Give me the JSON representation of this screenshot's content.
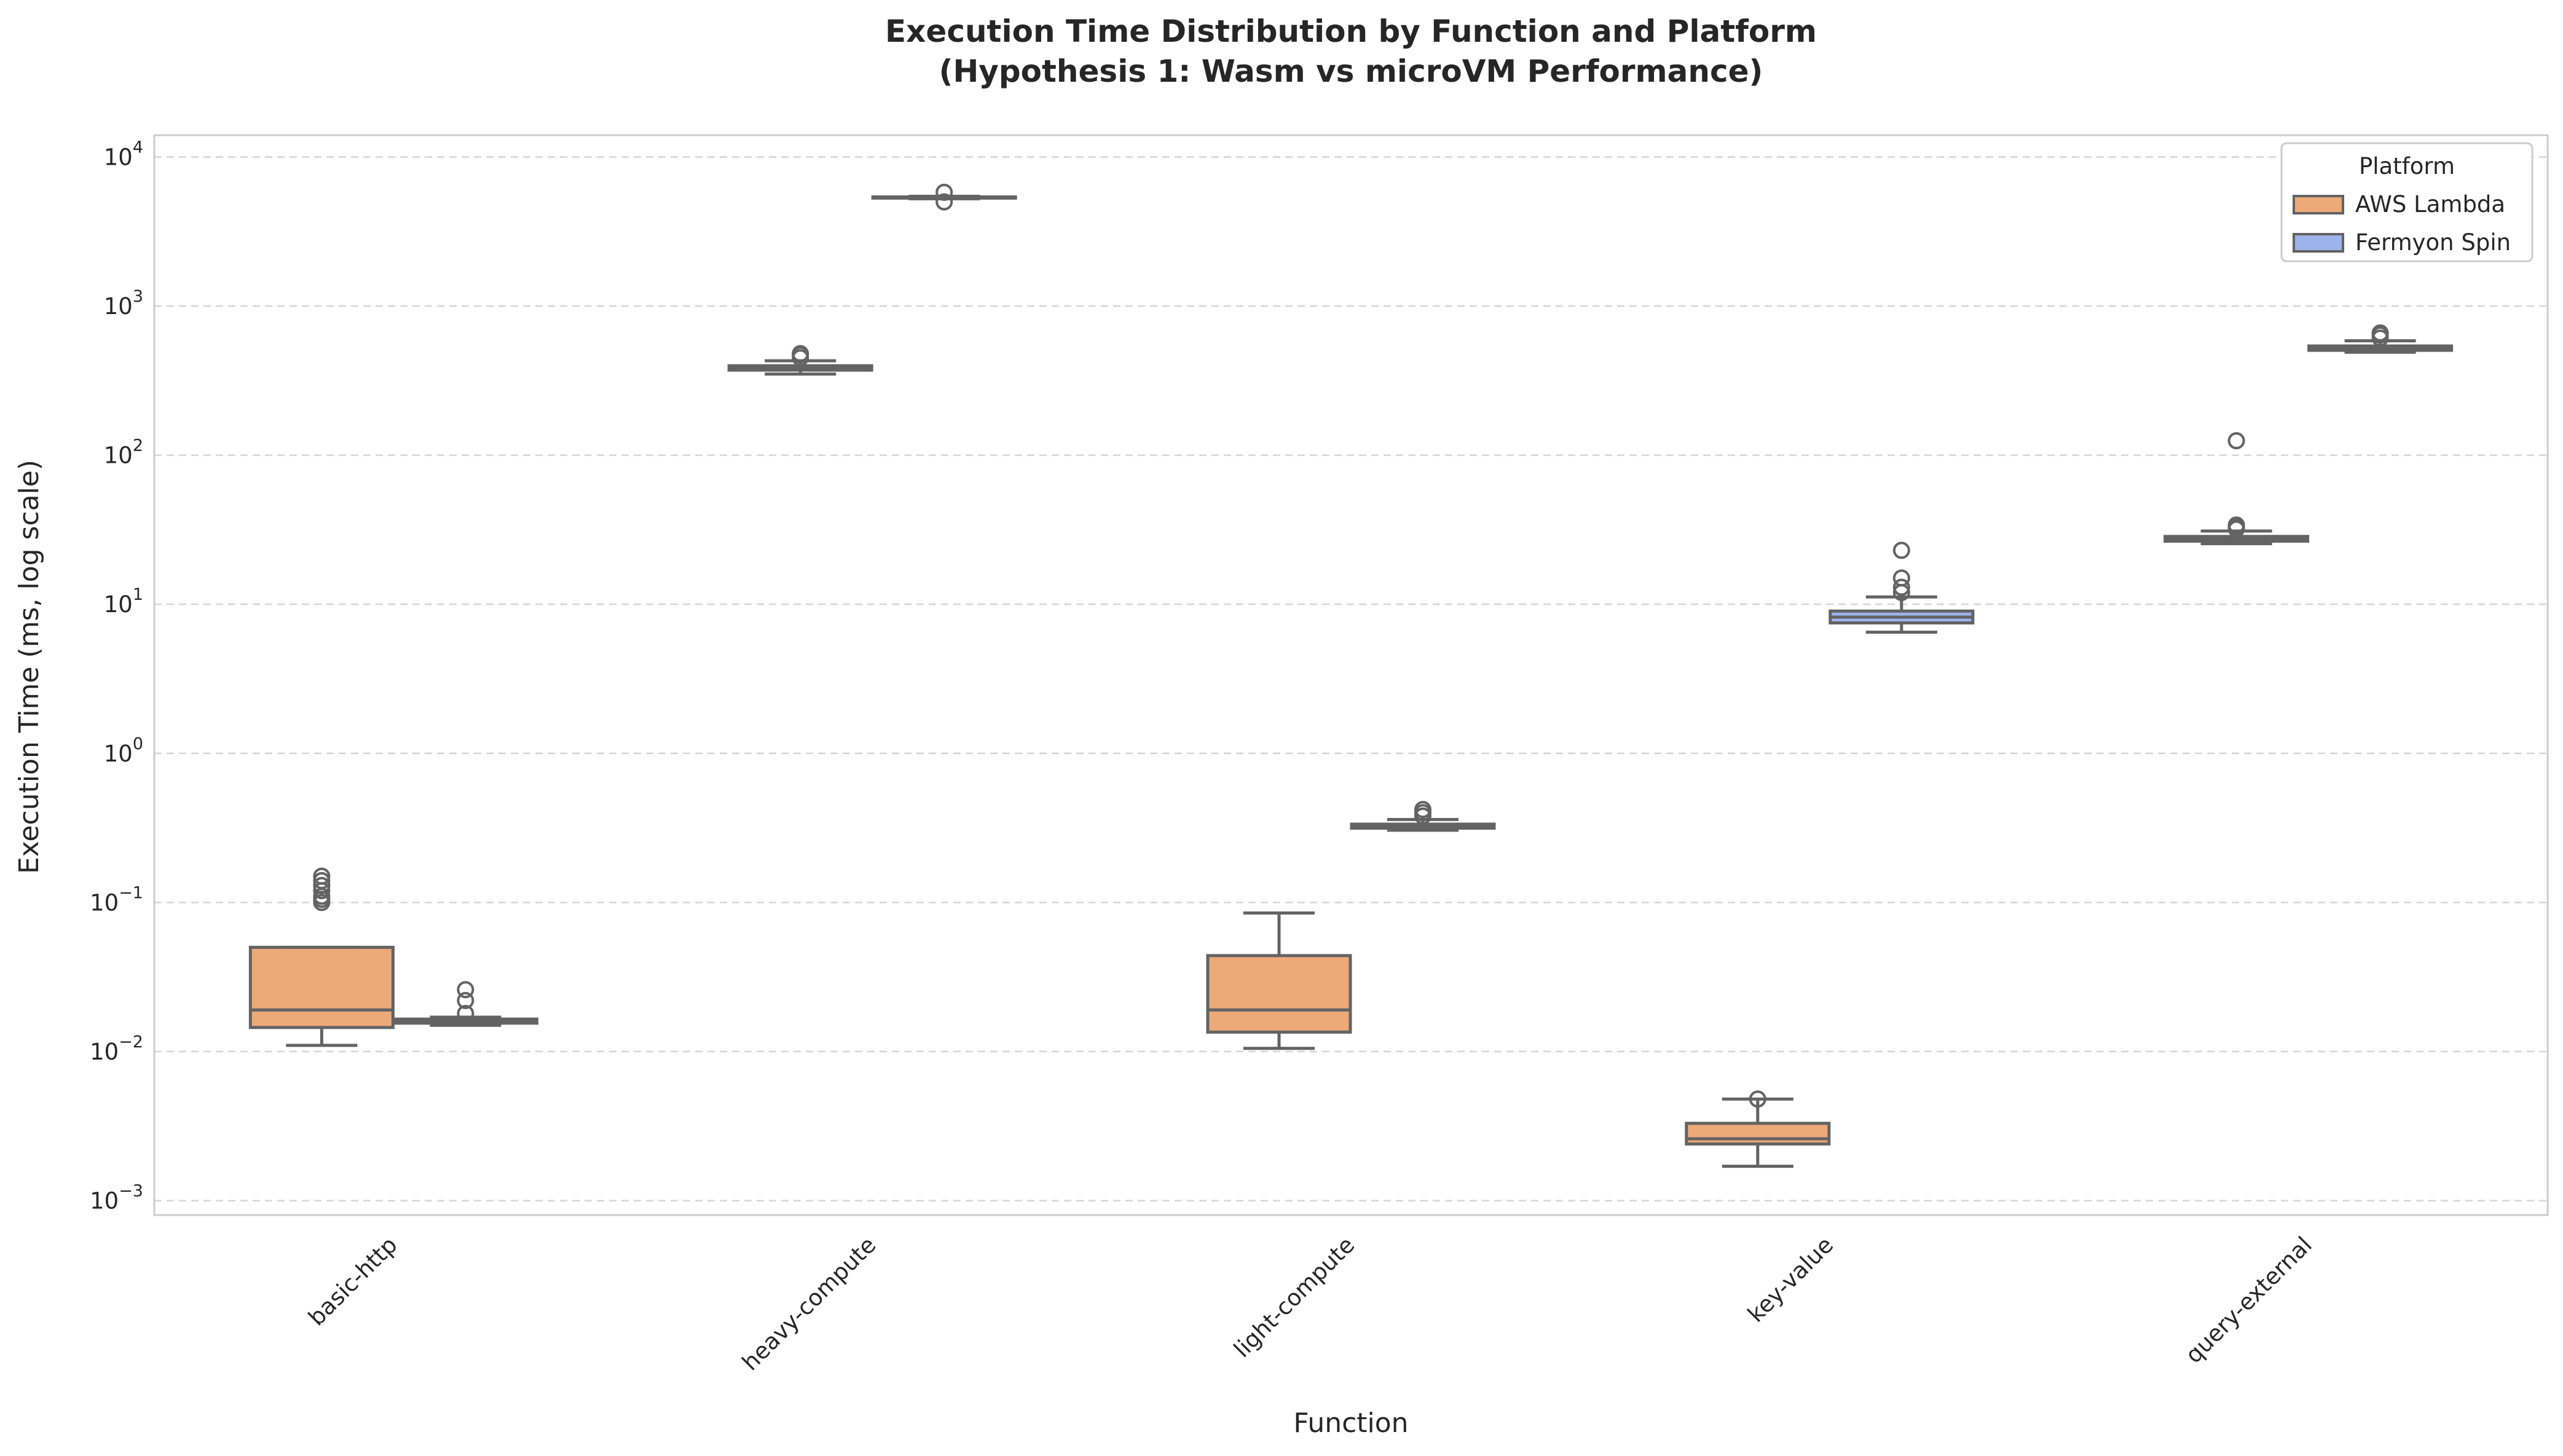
{
  "chart_data": {
    "type": "box",
    "title_line1": "Execution Time Distribution by Function and Platform",
    "title_line2": "(Hypothesis 1: Wasm vs microVM Performance)",
    "xlabel": "Function",
    "ylabel": "Execution Time (ms, log scale)",
    "yscale": "log",
    "ylim": [
      0.0008,
      14000
    ],
    "grid": true,
    "categories": [
      "basic-http",
      "heavy-compute",
      "light-compute",
      "key-value",
      "query-external"
    ],
    "yticks": [
      {
        "value": 0.001,
        "base": "10",
        "exp": "−3"
      },
      {
        "value": 0.01,
        "base": "10",
        "exp": "−2"
      },
      {
        "value": 0.1,
        "base": "10",
        "exp": "−1"
      },
      {
        "value": 1,
        "base": "10",
        "exp": "0"
      },
      {
        "value": 10,
        "base": "10",
        "exp": "1"
      },
      {
        "value": 100,
        "base": "10",
        "exp": "2"
      },
      {
        "value": 1000,
        "base": "10",
        "exp": "3"
      },
      {
        "value": 10000,
        "base": "10",
        "exp": "4"
      }
    ],
    "legend": {
      "title": "Platform",
      "placement": "top-right",
      "entries": [
        {
          "name": "AWS Lambda",
          "color": "#EDA978"
        },
        {
          "name": "Fermyon Spin",
          "color": "#9DB3EC"
        }
      ]
    },
    "series": [
      {
        "name": "AWS Lambda",
        "color": "#EDA978",
        "boxes": [
          {
            "category": "basic-http",
            "whislo": 0.011,
            "q1": 0.0145,
            "med": 0.019,
            "q3": 0.05,
            "whishi": 0.05,
            "fliers": [
              0.1,
              0.105,
              0.11,
              0.12,
              0.13,
              0.14,
              0.15
            ]
          },
          {
            "category": "heavy-compute",
            "whislo": 350,
            "q1": 372,
            "med": 385,
            "q3": 398,
            "whishi": 430,
            "fliers": [
              450,
              470,
              480
            ]
          },
          {
            "category": "light-compute",
            "whislo": 0.0105,
            "q1": 0.0135,
            "med": 0.019,
            "q3": 0.044,
            "whishi": 0.085,
            "fliers": []
          },
          {
            "category": "key-value",
            "whislo": 0.0017,
            "q1": 0.0024,
            "med": 0.0026,
            "q3": 0.0033,
            "whishi": 0.0048,
            "fliers": [
              0.0048
            ]
          },
          {
            "category": "query-external",
            "whislo": 25.5,
            "q1": 26.5,
            "med": 27.5,
            "q3": 28.5,
            "whishi": 31,
            "fliers": [
              32,
              33,
              34,
              125
            ]
          }
        ]
      },
      {
        "name": "Fermyon Spin",
        "color": "#9DB3EC",
        "boxes": [
          {
            "category": "basic-http",
            "whislo": 0.015,
            "q1": 0.0155,
            "med": 0.016,
            "q3": 0.0165,
            "whishi": 0.017,
            "fliers": [
              0.018,
              0.022,
              0.026
            ]
          },
          {
            "category": "heavy-compute",
            "whislo": 5250,
            "q1": 5300,
            "med": 5350,
            "q3": 5400,
            "whishi": 5450,
            "fliers": [
              5000,
              5800
            ]
          },
          {
            "category": "light-compute",
            "whislo": 0.305,
            "q1": 0.315,
            "med": 0.325,
            "q3": 0.335,
            "whishi": 0.36,
            "fliers": [
              0.38,
              0.4,
              0.42
            ]
          },
          {
            "category": "key-value",
            "whislo": 6.5,
            "q1": 7.5,
            "med": 8.2,
            "q3": 9.0,
            "whishi": 11.2,
            "fliers": [
              12,
              13,
              15,
              23
            ]
          },
          {
            "category": "query-external",
            "whislo": 490,
            "q1": 505,
            "med": 520,
            "q3": 540,
            "whishi": 585,
            "fliers": [
              610,
              640,
              660
            ]
          }
        ]
      }
    ]
  }
}
